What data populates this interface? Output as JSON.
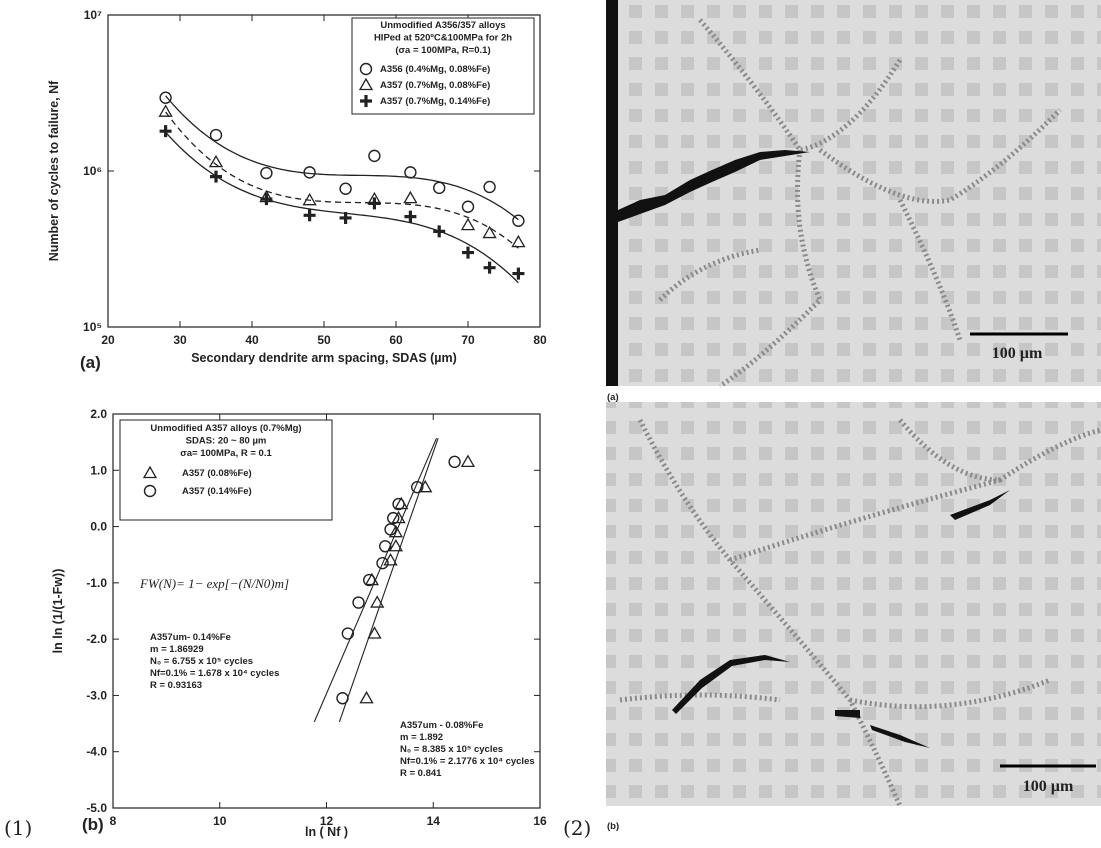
{
  "figure": {
    "left_label": "(1)",
    "right_label": "(2)"
  },
  "chart_data": [
    {
      "type": "scatter",
      "panel": "(a)",
      "x_label": "Secondary dendrite arm spacing, SDAS (µm)",
      "y_label": "Number of cycles to failure, Nf",
      "xlim": [
        20,
        80
      ],
      "xticks": [
        20,
        30,
        40,
        50,
        60,
        70,
        80
      ],
      "ylim": [
        100000,
        10000000
      ],
      "log_y": true,
      "yticks": [
        {
          "value": 100000,
          "label": "10⁵"
        },
        {
          "value": 1000000,
          "label": "10⁶"
        },
        {
          "value": 10000000,
          "label": "10⁷"
        }
      ],
      "fit": "cubic",
      "legend": "upper right",
      "legend_title": [
        "Unmodified A356/357 alloys",
        "HIPed at 520ºC&100MPa for 2h",
        "(σa = 100MPa, R=0.1)"
      ],
      "series": [
        {
          "name": "A356 (0.4%Mg, 0.08%Fe)",
          "marker": "circle",
          "line_style": "solid",
          "color": "#222222",
          "x": [
            28,
            35,
            42,
            48,
            53,
            57,
            62,
            66,
            70,
            73,
            77
          ],
          "values": [
            2950000,
            1700000,
            970000,
            980000,
            770000,
            1250000,
            980000,
            780000,
            590000,
            790000,
            480000
          ]
        },
        {
          "name": "A357 (0.7%Mg, 0.08%Fe)",
          "marker": "triangle",
          "line_style": "dashed",
          "color": "#222222",
          "x": [
            28,
            35,
            42,
            48,
            57,
            62,
            70,
            73,
            77
          ],
          "values": [
            2400000,
            1140000,
            680000,
            650000,
            660000,
            670000,
            450000,
            400000,
            350000
          ]
        },
        {
          "name": "A357 (0.7%Mg, 0.14%Fe)",
          "marker": "plus",
          "line_style": "solid",
          "color": "#222222",
          "x": [
            28,
            35,
            42,
            48,
            53,
            57,
            62,
            66,
            70,
            73,
            77
          ],
          "values": [
            1800000,
            920000,
            660000,
            520000,
            500000,
            620000,
            510000,
            410000,
            300000,
            240000,
            220000
          ]
        }
      ]
    },
    {
      "type": "scatter",
      "panel": "(b)",
      "x_label": "ln ( Nf )",
      "y_label": "ln ln (1/(1-Fw))",
      "xlim": [
        8,
        16
      ],
      "xticks": [
        8,
        10,
        12,
        14,
        16
      ],
      "ylim": [
        -5,
        2
      ],
      "yticks": [
        {
          "value": -5,
          "label": "-5.0"
        },
        {
          "value": -4,
          "label": "-4.0"
        },
        {
          "value": -3,
          "label": "-3.0"
        },
        {
          "value": -2,
          "label": "-2.0"
        },
        {
          "value": -1,
          "label": "-1.0"
        },
        {
          "value": 0,
          "label": "0.0"
        },
        {
          "value": 1,
          "label": "1.0"
        },
        {
          "value": 2,
          "label": "2.0"
        }
      ],
      "fit": "linear",
      "legend": "upper left",
      "legend_title": [
        "Unmodified A357 alloys (0.7%Mg)",
        "SDAS: 20 ~ 80 µm",
        "σa= 100MPa, R = 0.1"
      ],
      "equation": "FW(N)= 1− exp[−(N/N0)m]",
      "annotations": [
        [
          "A357um- 0.14%Fe",
          "m = 1.86929",
          "N₀ = 6.755 x 10⁵ cycles",
          "Nf=0.1% = 1.678 x 10⁴ cycles",
          "R = 0.93163"
        ],
        [
          "A357um - 0.08%Fe",
          "m = 1.892",
          "N₀ = 8.385 x 10⁵ cycles",
          "Nf=0.1% = 2.1776 x 10⁴ cycles",
          "R = 0.841"
        ]
      ],
      "series": [
        {
          "name": "A357 (0.08%Fe)",
          "marker": "triangle",
          "line_style": "solid",
          "color": "#222222",
          "x": [
            12.75,
            12.9,
            12.95,
            12.85,
            13.2,
            13.3,
            13.3,
            13.35,
            13.4,
            13.85,
            14.65
          ],
          "values": [
            -3.05,
            -1.9,
            -1.35,
            -0.95,
            -0.6,
            -0.35,
            -0.1,
            0.15,
            0.4,
            0.7,
            1.15
          ]
        },
        {
          "name": "A357 (0.14%Fe)",
          "marker": "circle",
          "line_style": "solid",
          "color": "#222222",
          "x": [
            12.3,
            12.4,
            12.6,
            12.8,
            13.05,
            13.1,
            13.2,
            13.25,
            13.35,
            13.7,
            14.4
          ],
          "values": [
            -3.05,
            -1.9,
            -1.35,
            -0.95,
            -0.65,
            -0.35,
            -0.05,
            0.15,
            0.4,
            0.7,
            1.15
          ]
        }
      ]
    }
  ],
  "micrographs": [
    {
      "panel": "(a)",
      "scale_bar": "100 µm"
    },
    {
      "panel": "(b)",
      "scale_bar": "100 µm"
    }
  ]
}
